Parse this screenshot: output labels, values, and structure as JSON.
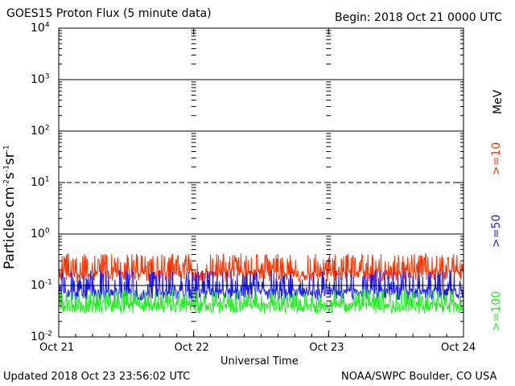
{
  "header": {
    "title": "GOES15 Proton Flux (5 minute data)",
    "begin": "Begin: 2018 Oct 21 0000 UTC"
  },
  "footer": {
    "updated": "Updated 2018 Oct 23 23:56:02 UTC",
    "source": "NOAA/SWPC Boulder, CO USA"
  },
  "colors": {
    "p10": "#ff3300",
    "p50": "#1a1aff",
    "p100": "#22ee22",
    "axis": "#000000"
  },
  "chart_data": {
    "type": "line",
    "title": "GOES15 Proton Flux (5 minute data)",
    "xlabel": "Universal Time",
    "ylabel_text": "Particles cm",
    "ylabel_parts": [
      "Particles cm",
      "-2",
      "s",
      "-1",
      "sr",
      "-1"
    ],
    "y_scale": "log",
    "ylim": [
      0.01,
      10000
    ],
    "y_ticks": [
      {
        "base": "10",
        "exp": "-2"
      },
      {
        "base": "10",
        "exp": "-1"
      },
      {
        "base": "10",
        "exp": "0"
      },
      {
        "base": "10",
        "exp": "1"
      },
      {
        "base": "10",
        "exp": "2"
      },
      {
        "base": "10",
        "exp": "3"
      },
      {
        "base": "10",
        "exp": "4"
      }
    ],
    "x_ticks": [
      "Oct 21",
      "Oct 22",
      "Oct 23",
      "Oct 24"
    ],
    "xlim_days": [
      0,
      3
    ],
    "unit_label": "MeV",
    "series": [
      {
        "name": ">=10",
        "color": "#ff3300",
        "baseline": 0.16,
        "spike_max": 0.42
      },
      {
        "name": ">=50",
        "color": "#1a1aff",
        "baseline": 0.07,
        "spike_max": 0.2
      },
      {
        "name": ">=100",
        "color": "#22ee22",
        "baseline": 0.038,
        "spike_max": 0.085
      }
    ]
  }
}
